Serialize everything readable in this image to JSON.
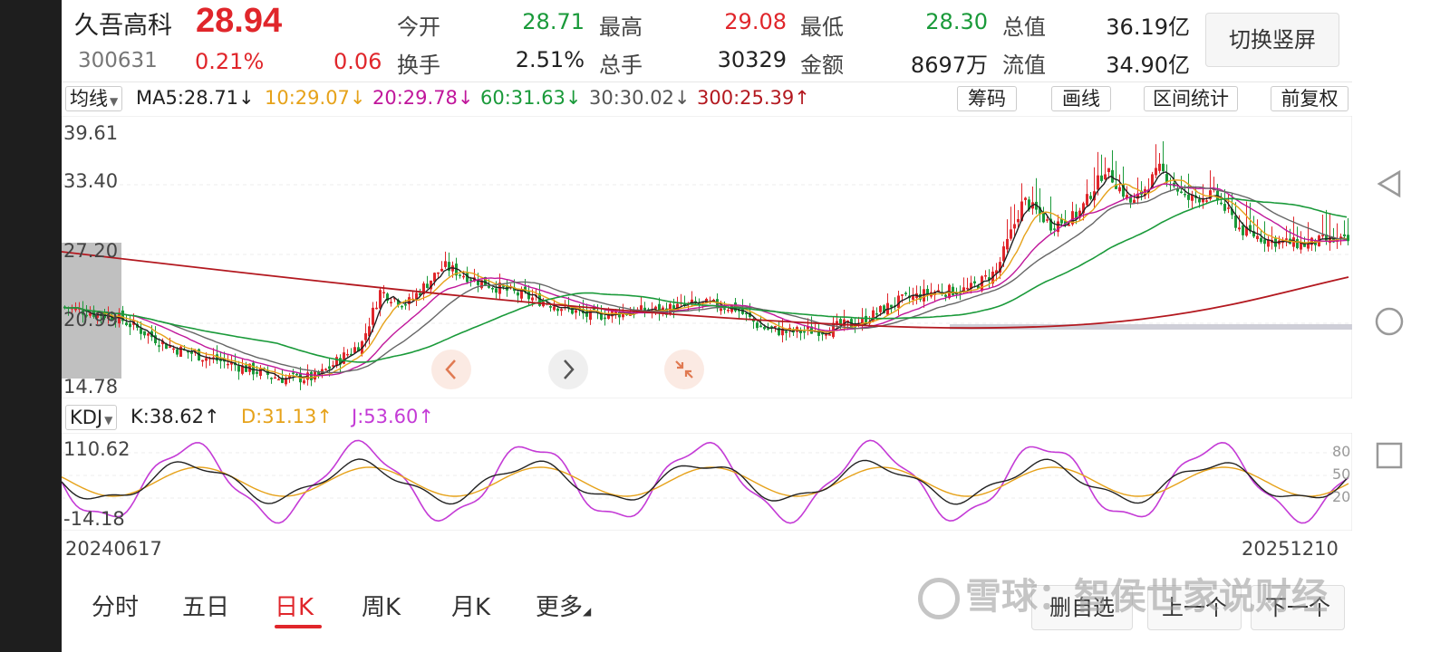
{
  "stock": {
    "name": "久吾高科",
    "price": "28.94",
    "code": "300631",
    "change_pct": "0.21%",
    "change": "0.06"
  },
  "quote": {
    "open_label": "今开",
    "open": "28.71",
    "high_label": "最高",
    "high": "29.08",
    "low_label": "最低",
    "low": "28.30",
    "mktcap_label": "总值",
    "mktcap": "36.19亿",
    "turnover_label": "换手",
    "turnover": "2.51%",
    "volume_label": "总手",
    "volume": "30329",
    "amount_label": "金额",
    "amount": "8697万",
    "float_label": "流值",
    "float": "34.90亿"
  },
  "switch_label": "切换竖屏",
  "ma_bar": {
    "selector": "均线",
    "items": [
      "MA5:28.71↓",
      "10:29.07↓",
      "20:29.78↓",
      "60:31.63↓",
      "30:30.02↓",
      "300:25.39↑"
    ],
    "colors": [
      "#222222",
      "#e6a21a",
      "#c0179b",
      "#1a9a3a",
      "#555555",
      "#b3181f"
    ]
  },
  "tools": [
    "筹码",
    "画线",
    "区间统计",
    "前复权"
  ],
  "price_axis": [
    "39.61",
    "33.40",
    "27.20",
    "20.99",
    "14.78"
  ],
  "kdj_bar": {
    "selector": "KDJ",
    "k": "K:38.62↑",
    "d": "D:31.13↑",
    "j": "J:53.60↑"
  },
  "kdj_axis": {
    "top": "110.62",
    "bottom": "-14.18",
    "r80": "80",
    "r50": "50",
    "r20": "20"
  },
  "dates": {
    "start": "20240617",
    "end": "20251210"
  },
  "tabs": [
    "分时",
    "五日",
    "日K",
    "周K",
    "月K",
    "更多"
  ],
  "active_tab": "日K",
  "bottom_buttons": [
    "删自选",
    "上一个",
    "下一个"
  ],
  "watermark": "雪球：智侯世家说财经",
  "colors": {
    "up": "#e0262b",
    "down": "#1a9a3a",
    "ma5": "#222222",
    "ma10": "#e6a21a",
    "ma20": "#c0179b",
    "ma60": "#1a9a3a",
    "ma300": "#b3181f",
    "k": "#222222",
    "d": "#e6a21a",
    "j": "#c43bd6"
  },
  "icons": [
    "arrow-left-icon",
    "arrow-right-icon",
    "shrink-icon",
    "back-triangle-icon",
    "home-circle-icon",
    "recent-square-icon"
  ]
}
